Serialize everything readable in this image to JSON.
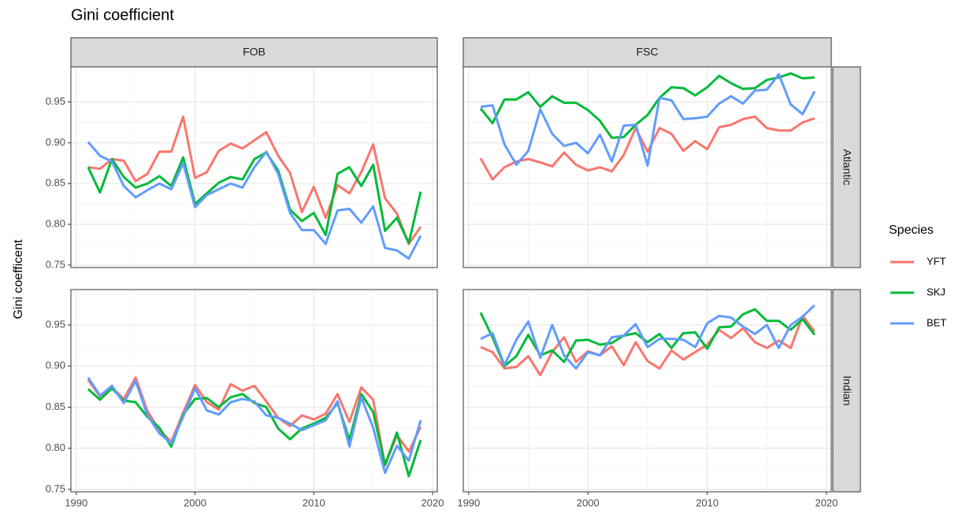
{
  "chart_data": {
    "type": "line",
    "title": "Gini coefficient",
    "y_label": "Gini coefficent",
    "legend_title": "Species",
    "columns": [
      "FOB",
      "FSC"
    ],
    "rows": [
      "Atlantic",
      "Indian"
    ],
    "series": [
      {
        "name": "YFT",
        "color": "#f8766d"
      },
      {
        "name": "SKJ",
        "color": "#00ba38"
      },
      {
        "name": "BET",
        "color": "#619cff"
      }
    ],
    "x": [
      1991,
      1992,
      1993,
      1994,
      1995,
      1996,
      1997,
      1998,
      1999,
      2000,
      2001,
      2002,
      2003,
      2004,
      2005,
      2006,
      2007,
      2008,
      2009,
      2010,
      2011,
      2012,
      2013,
      2014,
      2015,
      2016,
      2017,
      2018,
      2019
    ],
    "xlim": [
      1989.55,
      2020.4
    ],
    "xticks": [
      1990,
      2000,
      2010,
      2020
    ],
    "xminor": [
      1995,
      2005,
      2015
    ],
    "ylim": [
      0.747,
      0.993
    ],
    "yticks": [
      0.75,
      {
        "value": 0.8,
        "label": "0.80"
      },
      0.85,
      {
        "value": 0.9,
        "label": "0.90"
      },
      0.95
    ],
    "yminor": [
      0.775,
      0.825,
      0.875,
      0.925
    ],
    "grid": true,
    "panels": [
      {
        "values": [
          [
            0.87,
            0.868,
            0.88,
            0.878,
            0.853,
            0.862,
            0.889,
            0.889,
            0.932,
            0.857,
            0.864,
            0.89,
            0.899,
            0.893,
            0.903,
            0.913,
            0.884,
            0.863,
            0.815,
            0.846,
            0.808,
            0.848,
            0.838,
            0.864,
            0.898,
            0.832,
            0.813,
            0.776,
            0.797
          ],
          [
            0.87,
            0.839,
            0.88,
            0.858,
            0.845,
            0.85,
            0.859,
            0.847,
            0.882,
            0.825,
            0.838,
            0.851,
            0.858,
            0.855,
            0.88,
            0.888,
            0.866,
            0.818,
            0.804,
            0.814,
            0.787,
            0.862,
            0.87,
            0.847,
            0.873,
            0.792,
            0.808,
            0.777,
            0.84
          ],
          [
            0.901,
            0.884,
            0.877,
            0.847,
            0.833,
            0.842,
            0.85,
            0.843,
            0.875,
            0.821,
            0.836,
            0.843,
            0.85,
            0.845,
            0.87,
            0.889,
            0.862,
            0.814,
            0.793,
            0.793,
            0.776,
            0.817,
            0.819,
            0.802,
            0.822,
            0.771,
            0.768,
            0.758,
            0.786
          ]
        ]
      },
      {
        "values": [
          [
            0.881,
            0.855,
            0.87,
            0.877,
            0.88,
            0.876,
            0.871,
            0.888,
            0.873,
            0.866,
            0.87,
            0.865,
            0.885,
            0.918,
            0.889,
            0.918,
            0.911,
            0.89,
            0.902,
            0.892,
            0.919,
            0.922,
            0.929,
            0.932,
            0.918,
            0.915,
            0.915,
            0.925,
            0.93
          ],
          [
            0.942,
            0.924,
            0.953,
            0.953,
            0.962,
            0.944,
            0.957,
            0.949,
            0.949,
            0.94,
            0.927,
            0.906,
            0.907,
            0.922,
            0.934,
            0.955,
            0.968,
            0.967,
            0.958,
            0.968,
            0.982,
            0.973,
            0.966,
            0.967,
            0.977,
            0.98,
            0.985,
            0.979,
            0.98
          ],
          [
            0.944,
            0.946,
            0.898,
            0.873,
            0.89,
            0.941,
            0.911,
            0.896,
            0.9,
            0.887,
            0.91,
            0.877,
            0.921,
            0.922,
            0.872,
            0.955,
            0.952,
            0.929,
            0.93,
            0.932,
            0.948,
            0.957,
            0.948,
            0.964,
            0.965,
            0.984,
            0.947,
            0.935,
            0.963
          ]
        ]
      },
      {
        "values": [
          [
            0.883,
            0.863,
            0.874,
            0.86,
            0.886,
            0.845,
            0.822,
            0.808,
            0.843,
            0.877,
            0.856,
            0.847,
            0.878,
            0.87,
            0.876,
            0.857,
            0.837,
            0.827,
            0.84,
            0.835,
            0.842,
            0.866,
            0.832,
            0.874,
            0.859,
            0.779,
            0.816,
            0.796,
            0.826
          ],
          [
            0.872,
            0.859,
            0.873,
            0.858,
            0.856,
            0.838,
            0.825,
            0.802,
            0.841,
            0.86,
            0.861,
            0.85,
            0.862,
            0.866,
            0.855,
            0.85,
            0.824,
            0.811,
            0.824,
            0.83,
            0.837,
            0.855,
            0.81,
            0.866,
            0.844,
            0.78,
            0.819,
            0.766,
            0.81
          ],
          [
            0.886,
            0.864,
            0.876,
            0.855,
            0.882,
            0.84,
            0.818,
            0.806,
            0.838,
            0.873,
            0.846,
            0.841,
            0.856,
            0.86,
            0.857,
            0.84,
            0.837,
            0.83,
            0.822,
            0.828,
            0.834,
            0.857,
            0.802,
            0.862,
            0.825,
            0.77,
            0.803,
            0.785,
            0.834
          ]
        ]
      },
      {
        "values": [
          [
            0.923,
            0.917,
            0.897,
            0.899,
            0.912,
            0.889,
            0.917,
            0.935,
            0.905,
            0.918,
            0.913,
            0.924,
            0.901,
            0.929,
            0.906,
            0.897,
            0.919,
            0.908,
            0.917,
            0.926,
            0.944,
            0.934,
            0.946,
            0.929,
            0.922,
            0.931,
            0.922,
            0.961,
            0.942
          ],
          [
            0.965,
            0.935,
            0.9,
            0.912,
            0.938,
            0.913,
            0.919,
            0.905,
            0.931,
            0.932,
            0.926,
            0.928,
            0.937,
            0.94,
            0.929,
            0.939,
            0.922,
            0.94,
            0.941,
            0.921,
            0.947,
            0.948,
            0.963,
            0.969,
            0.955,
            0.955,
            0.944,
            0.957,
            0.938
          ],
          [
            0.933,
            0.94,
            0.901,
            0.932,
            0.954,
            0.91,
            0.95,
            0.913,
            0.897,
            0.917,
            0.913,
            0.935,
            0.937,
            0.951,
            0.923,
            0.933,
            0.933,
            0.932,
            0.923,
            0.952,
            0.961,
            0.959,
            0.948,
            0.939,
            0.95,
            0.922,
            0.95,
            0.96,
            0.974
          ]
        ]
      }
    ]
  }
}
